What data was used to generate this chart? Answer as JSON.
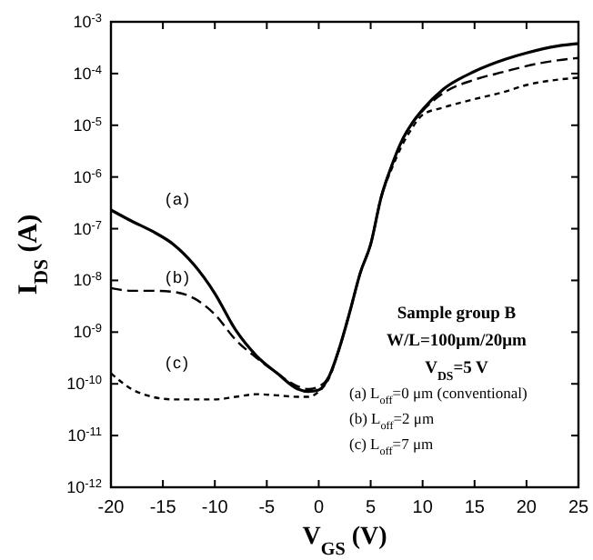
{
  "chart_data": {
    "type": "line",
    "xlabel": "V$_{GS}$ (V)",
    "ylabel": "I$_{DS}$ (A)",
    "log": "y",
    "grid": false,
    "x": [
      -20,
      -18,
      -16,
      -14,
      -12,
      -10,
      -8,
      -6,
      -4,
      -2,
      -1,
      0,
      1,
      2,
      3,
      4,
      5,
      6,
      7,
      8,
      9,
      10,
      12,
      15,
      18,
      20,
      23,
      25
    ],
    "xlim": [
      -20,
      25
    ],
    "xticks": [
      -20,
      -15,
      -10,
      -5,
      0,
      5,
      10,
      15,
      20,
      25
    ],
    "ylim": [
      1e-12,
      0.001
    ],
    "yticks": [
      {
        "value": 1e-12,
        "label": "10$^{-12}$"
      },
      {
        "value": 1e-11,
        "label": "10$^{-11}$"
      },
      {
        "value": 1e-10,
        "label": "10$^{-10}$"
      },
      {
        "value": 1e-09,
        "label": "10$^{-9}$"
      },
      {
        "value": 1e-08,
        "label": "10$^{-8}$"
      },
      {
        "value": 1e-07,
        "label": "10$^{-7}$"
      },
      {
        "value": 1e-06,
        "label": "10$^{-6}$"
      },
      {
        "value": 1e-05,
        "label": "10$^{-5}$"
      },
      {
        "value": 0.0001,
        "label": "10$^{-4}$"
      },
      {
        "value": 0.001,
        "label": "10$^{-3}$"
      }
    ],
    "series": [
      {
        "name": "(a)",
        "color": "#000000",
        "line_style": "solid",
        "values": [
          2.3e-07,
          1.4e-07,
          8.9e-08,
          5e-08,
          2e-08,
          5.6e-09,
          1.1e-09,
          3.5e-10,
          1.6e-10,
          7.9e-11,
          7.1e-11,
          7.6e-11,
          1.4e-10,
          5e-10,
          2.5e-09,
          1.4e-08,
          5e-08,
          4e-07,
          1.6e-06,
          5e-06,
          1.1e-05,
          2e-05,
          5e-05,
          0.00011,
          0.00019,
          0.00025,
          0.00034,
          0.00038
        ]
      },
      {
        "name": "(b)",
        "color": "#000000",
        "line_style": "dashed",
        "values": [
          7.1e-09,
          6.3e-09,
          6.3e-09,
          6e-09,
          4.5e-09,
          2.2e-09,
          7.1e-10,
          3.2e-10,
          1.6e-10,
          8.9e-11,
          7.9e-11,
          8.9e-11,
          1.4e-10,
          5e-10,
          2.5e-09,
          1.4e-08,
          5e-08,
          4e-07,
          1.6e-06,
          5e-06,
          1.1e-05,
          1.9e-05,
          4.2e-05,
          7.6e-05,
          0.00011,
          0.00014,
          0.00018,
          0.0002
        ]
      },
      {
        "name": "(c)",
        "color": "#000000",
        "line_style": "dotted",
        "values": [
          1.6e-10,
          7.9e-11,
          5.6e-11,
          5e-11,
          5e-11,
          5e-11,
          5.6e-11,
          6.3e-11,
          6e-11,
          5.6e-11,
          5.6e-11,
          7.1e-11,
          1.3e-10,
          5e-10,
          2.5e-09,
          1.4e-08,
          5e-08,
          4e-07,
          1.4e-06,
          4e-06,
          8.9e-06,
          1.6e-05,
          2.2e-05,
          3.2e-05,
          4.5e-05,
          6e-05,
          7.6e-05,
          8.3e-05
        ]
      }
    ],
    "annotations": [
      "Sample group B",
      "W/L=100μm/20μm",
      "V$_{DS}$=5 V",
      "(a) L$_{off}$=0 μm (conventional)",
      "(b) L$_{off}$=2 μm",
      "(c) L$_{off}$=7 μm"
    ]
  }
}
